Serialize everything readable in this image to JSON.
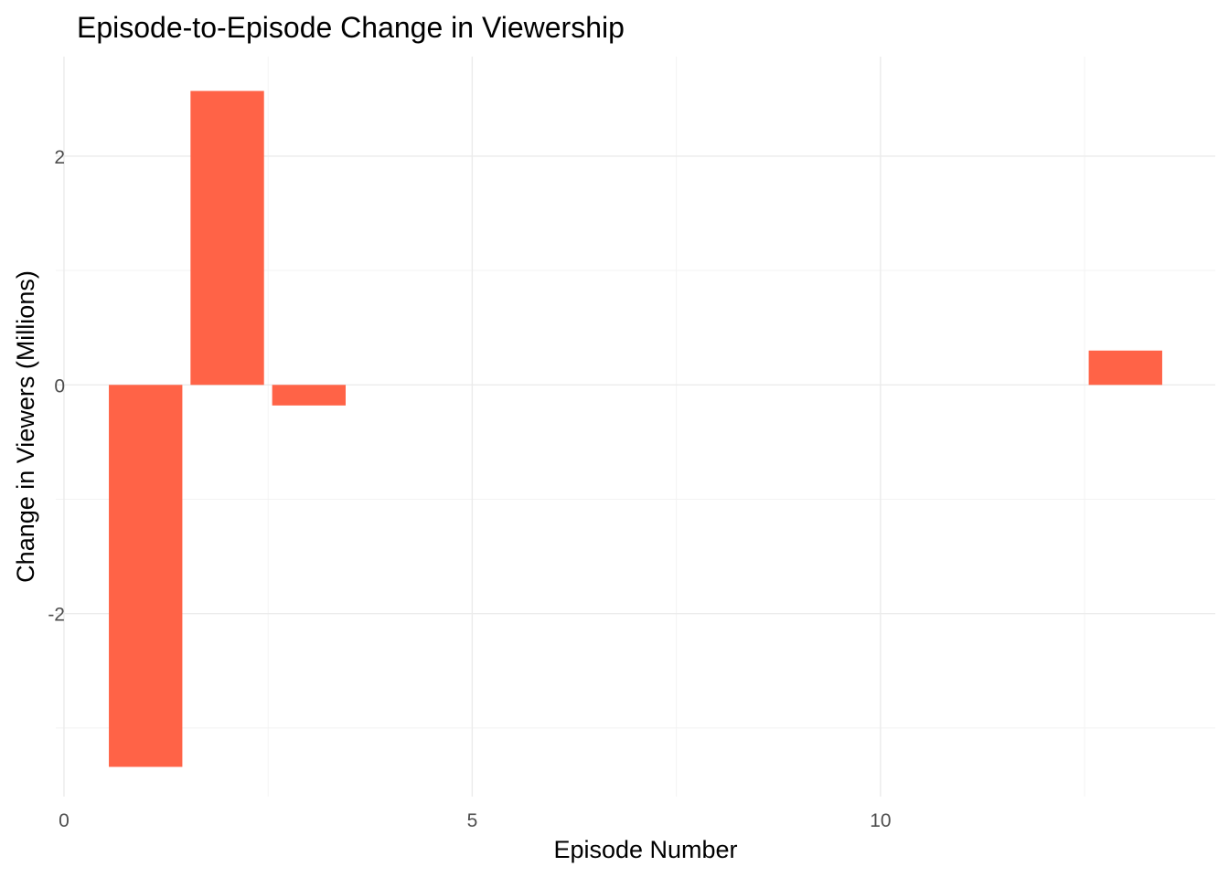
{
  "chart_data": {
    "type": "bar",
    "title": "Episode-to-Episode Change in Viewership",
    "xlabel": "Episode Number",
    "ylabel": "Change in Viewers (Millions)",
    "x": [
      1,
      2,
      3,
      13
    ],
    "values": [
      -3.34,
      2.57,
      -0.18,
      0.3
    ],
    "bar_color": "#FF6347",
    "xlim": [
      -0.1,
      14.1
    ],
    "ylim": [
      -3.6,
      2.87
    ],
    "x_ticks": [
      0,
      5,
      10
    ],
    "y_ticks": [
      -2,
      0,
      2
    ],
    "bar_width": 0.9,
    "grid": true,
    "legend": "none"
  }
}
